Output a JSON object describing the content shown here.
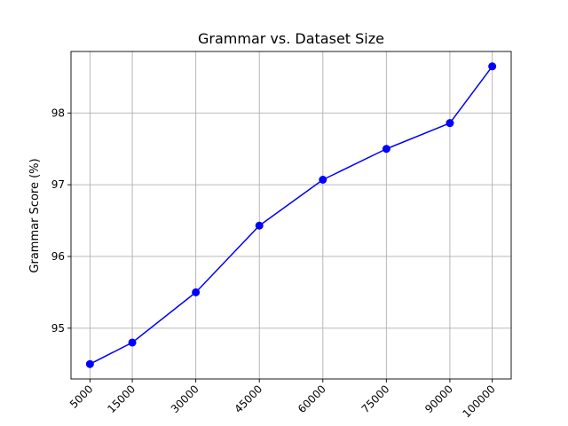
{
  "chart_data": {
    "type": "line",
    "title": "Grammar vs. Dataset Size",
    "xlabel": "",
    "ylabel": "Grammar Score (%)",
    "x": [
      5000,
      15000,
      30000,
      45000,
      60000,
      75000,
      90000,
      100000
    ],
    "x_tick_labels": [
      "5000",
      "15000",
      "30000",
      "45000",
      "60000",
      "75000",
      "90000",
      "100000"
    ],
    "xlim": [
      525,
      104475
    ],
    "series": [
      {
        "values": [
          94.5,
          94.8,
          95.5,
          96.43,
          97.07,
          97.5,
          97.86,
          98.65
        ],
        "color": "#0000ff",
        "marker": "circle"
      }
    ],
    "ylim": [
      94.292,
      98.858
    ],
    "y_ticks": [
      95,
      96,
      97,
      98
    ],
    "y_tick_labels": [
      "95",
      "96",
      "97",
      "98"
    ],
    "grid": true,
    "legend": "none"
  }
}
